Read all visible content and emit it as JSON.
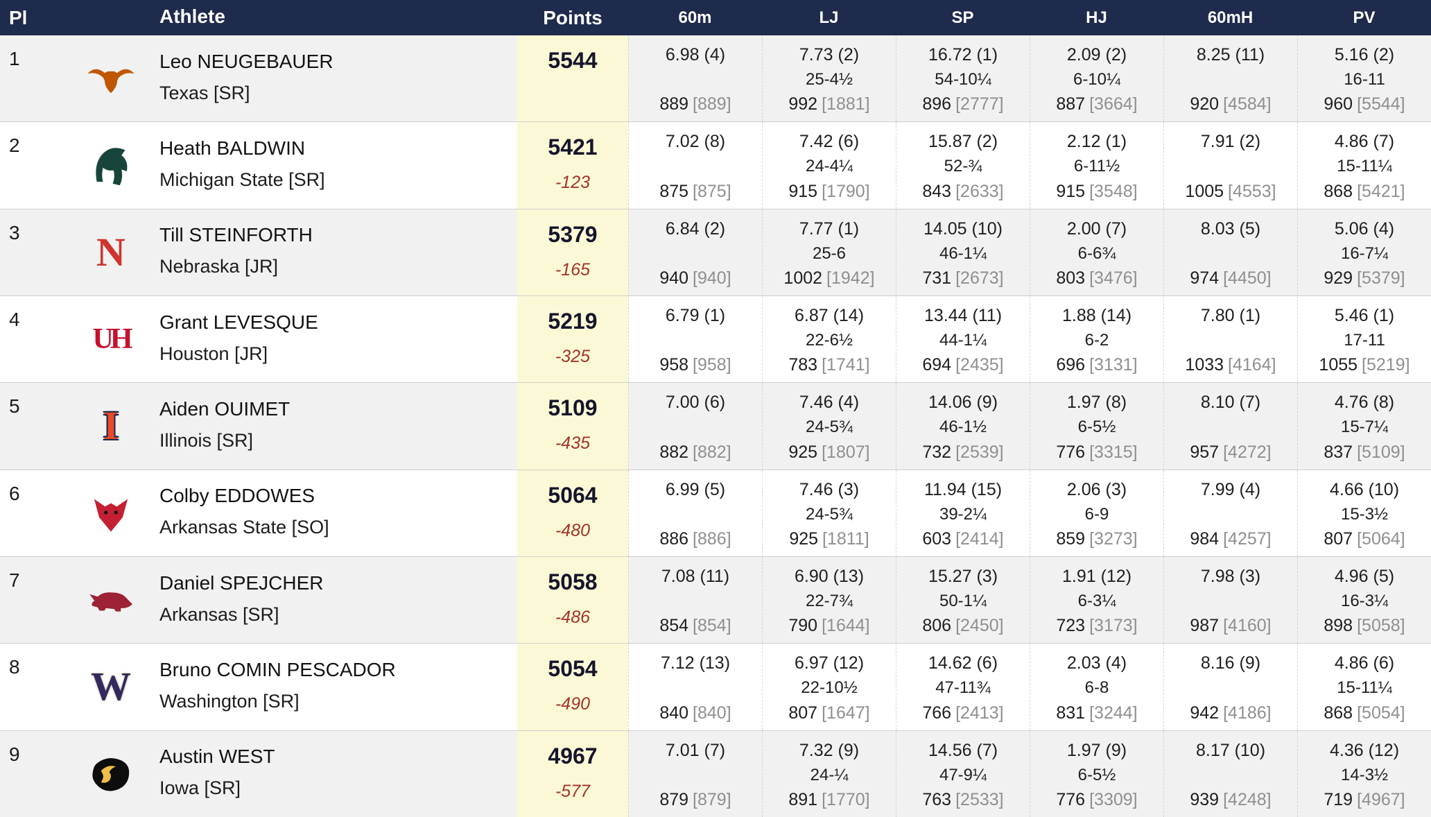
{
  "header": {
    "columns": [
      {
        "key": "pl",
        "label": "Pl"
      },
      {
        "key": "athlete",
        "label": "Athlete"
      },
      {
        "key": "points",
        "label": "Points"
      },
      {
        "key": "60m",
        "label": "60m"
      },
      {
        "key": "lj",
        "label": "LJ"
      },
      {
        "key": "sp",
        "label": "SP"
      },
      {
        "key": "hj",
        "label": "HJ"
      },
      {
        "key": "60mh",
        "label": "60mH"
      },
      {
        "key": "pv",
        "label": "PV"
      }
    ]
  },
  "colors": {
    "header_bg": "#1e2b4d",
    "header_text": "#ffffff",
    "points_column_bg": "#fbf8d6",
    "alt_row_bg": "#f1f1f1",
    "deficit_red": "#a0342b",
    "cumulative_gray": "#8f8f8f",
    "row_border": "#cfcfcf"
  },
  "rows": [
    {
      "place": "1",
      "athlete": {
        "name": "Leo NEUGEBAUER",
        "team": "Texas [SR]"
      },
      "logo": {
        "name": "texas-longhorns-logo",
        "style": "longhorn",
        "color": "#bf5700",
        "color2": "#bf5700"
      },
      "points": {
        "total": "5544",
        "deficit": ""
      },
      "events": [
        {
          "mark": "6.98 (4)",
          "imperial": "",
          "points": "889",
          "cumulative": "[889]"
        },
        {
          "mark": "7.73 (2)",
          "imperial": "25-4½",
          "points": "992",
          "cumulative": "[1881]"
        },
        {
          "mark": "16.72 (1)",
          "imperial": "54-10¼",
          "points": "896",
          "cumulative": "[2777]"
        },
        {
          "mark": "2.09 (2)",
          "imperial": "6-10¼",
          "points": "887",
          "cumulative": "[3664]"
        },
        {
          "mark": "8.25 (11)",
          "imperial": "",
          "points": "920",
          "cumulative": "[4584]"
        },
        {
          "mark": "5.16 (2)",
          "imperial": "16-11",
          "points": "960",
          "cumulative": "[5544]"
        }
      ]
    },
    {
      "place": "2",
      "athlete": {
        "name": "Heath BALDWIN",
        "team": "Michigan State [SR]"
      },
      "logo": {
        "name": "michigan-state-spartans-logo",
        "style": "spartan",
        "color": "#18453b",
        "color2": "#18453b"
      },
      "points": {
        "total": "5421",
        "deficit": "-123"
      },
      "events": [
        {
          "mark": "7.02 (8)",
          "imperial": "",
          "points": "875",
          "cumulative": "[875]"
        },
        {
          "mark": "7.42 (6)",
          "imperial": "24-4¼",
          "points": "915",
          "cumulative": "[1790]"
        },
        {
          "mark": "15.87 (2)",
          "imperial": "52-¾",
          "points": "843",
          "cumulative": "[2633]"
        },
        {
          "mark": "2.12 (1)",
          "imperial": "6-11½",
          "points": "915",
          "cumulative": "[3548]"
        },
        {
          "mark": "7.91 (2)",
          "imperial": "",
          "points": "1005",
          "cumulative": "[4553]"
        },
        {
          "mark": "4.86 (7)",
          "imperial": "15-11¼",
          "points": "868",
          "cumulative": "[5421]"
        }
      ]
    },
    {
      "place": "3",
      "athlete": {
        "name": "Till STEINFORTH",
        "team": "Nebraska [JR]"
      },
      "logo": {
        "name": "nebraska-huskers-logo",
        "style": "block-n",
        "color": "#d0342c",
        "color2": "#ffffff"
      },
      "points": {
        "total": "5379",
        "deficit": "-165"
      },
      "events": [
        {
          "mark": "6.84 (2)",
          "imperial": "",
          "points": "940",
          "cumulative": "[940]"
        },
        {
          "mark": "7.77 (1)",
          "imperial": "25-6",
          "points": "1002",
          "cumulative": "[1942]"
        },
        {
          "mark": "14.05 (10)",
          "imperial": "46-1¼",
          "points": "731",
          "cumulative": "[2673]"
        },
        {
          "mark": "2.00 (7)",
          "imperial": "6-6¾",
          "points": "803",
          "cumulative": "[3476]"
        },
        {
          "mark": "8.03 (5)",
          "imperial": "",
          "points": "974",
          "cumulative": "[4450]"
        },
        {
          "mark": "5.06 (4)",
          "imperial": "16-7¼",
          "points": "929",
          "cumulative": "[5379]"
        }
      ]
    },
    {
      "place": "4",
      "athlete": {
        "name": "Grant LEVESQUE",
        "team": "Houston [JR]"
      },
      "logo": {
        "name": "houston-cougars-logo",
        "style": "uh",
        "color": "#c8102e",
        "color2": "#ffffff"
      },
      "points": {
        "total": "5219",
        "deficit": "-325"
      },
      "events": [
        {
          "mark": "6.79 (1)",
          "imperial": "",
          "points": "958",
          "cumulative": "[958]"
        },
        {
          "mark": "6.87 (14)",
          "imperial": "22-6½",
          "points": "783",
          "cumulative": "[1741]"
        },
        {
          "mark": "13.44 (11)",
          "imperial": "44-1¼",
          "points": "694",
          "cumulative": "[2435]"
        },
        {
          "mark": "1.88 (14)",
          "imperial": "6-2",
          "points": "696",
          "cumulative": "[3131]"
        },
        {
          "mark": "7.80 (1)",
          "imperial": "",
          "points": "1033",
          "cumulative": "[4164]"
        },
        {
          "mark": "5.46 (1)",
          "imperial": "17-11",
          "points": "1055",
          "cumulative": "[5219]"
        }
      ]
    },
    {
      "place": "5",
      "athlete": {
        "name": "Aiden OUIMET",
        "team": "Illinois [SR]"
      },
      "logo": {
        "name": "illinois-fighting-illini-logo",
        "style": "block-i",
        "color": "#e84a27",
        "color2": "#13294b"
      },
      "points": {
        "total": "5109",
        "deficit": "-435"
      },
      "events": [
        {
          "mark": "7.00 (6)",
          "imperial": "",
          "points": "882",
          "cumulative": "[882]"
        },
        {
          "mark": "7.46 (4)",
          "imperial": "24-5¾",
          "points": "925",
          "cumulative": "[1807]"
        },
        {
          "mark": "14.06 (9)",
          "imperial": "46-1½",
          "points": "732",
          "cumulative": "[2539]"
        },
        {
          "mark": "1.97 (8)",
          "imperial": "6-5½",
          "points": "776",
          "cumulative": "[3315]"
        },
        {
          "mark": "8.10 (7)",
          "imperial": "",
          "points": "957",
          "cumulative": "[4272]"
        },
        {
          "mark": "4.76 (8)",
          "imperial": "15-7¼",
          "points": "837",
          "cumulative": "[5109]"
        }
      ]
    },
    {
      "place": "6",
      "athlete": {
        "name": "Colby EDDOWES",
        "team": "Arkansas State [SO]"
      },
      "logo": {
        "name": "arkansas-state-red-wolves-logo",
        "style": "wolf",
        "color": "#c42032",
        "color2": "#111111"
      },
      "points": {
        "total": "5064",
        "deficit": "-480"
      },
      "events": [
        {
          "mark": "6.99 (5)",
          "imperial": "",
          "points": "886",
          "cumulative": "[886]"
        },
        {
          "mark": "7.46 (3)",
          "imperial": "24-5¾",
          "points": "925",
          "cumulative": "[1811]"
        },
        {
          "mark": "11.94 (15)",
          "imperial": "39-2¼",
          "points": "603",
          "cumulative": "[2414]"
        },
        {
          "mark": "2.06 (3)",
          "imperial": "6-9",
          "points": "859",
          "cumulative": "[3273]"
        },
        {
          "mark": "7.99 (4)",
          "imperial": "",
          "points": "984",
          "cumulative": "[4257]"
        },
        {
          "mark": "4.66 (10)",
          "imperial": "15-3½",
          "points": "807",
          "cumulative": "[5064]"
        }
      ]
    },
    {
      "place": "7",
      "athlete": {
        "name": "Daniel SPEJCHER",
        "team": "Arkansas [SR]"
      },
      "logo": {
        "name": "arkansas-razorbacks-logo",
        "style": "razorback",
        "color": "#9d2235",
        "color2": "#9d2235"
      },
      "points": {
        "total": "5058",
        "deficit": "-486"
      },
      "events": [
        {
          "mark": "7.08 (11)",
          "imperial": "",
          "points": "854",
          "cumulative": "[854]"
        },
        {
          "mark": "6.90 (13)",
          "imperial": "22-7¾",
          "points": "790",
          "cumulative": "[1644]"
        },
        {
          "mark": "15.27 (3)",
          "imperial": "50-1¼",
          "points": "806",
          "cumulative": "[2450]"
        },
        {
          "mark": "1.91 (12)",
          "imperial": "6-3¼",
          "points": "723",
          "cumulative": "[3173]"
        },
        {
          "mark": "7.98 (3)",
          "imperial": "",
          "points": "987",
          "cumulative": "[4160]"
        },
        {
          "mark": "4.96 (5)",
          "imperial": "16-3¼",
          "points": "898",
          "cumulative": "[5058]"
        }
      ]
    },
    {
      "place": "8",
      "athlete": {
        "name": "Bruno COMIN PESCADOR",
        "team": "Washington [SR]"
      },
      "logo": {
        "name": "washington-huskies-logo",
        "style": "block-w",
        "color": "#33295e",
        "color2": "#b7a57a"
      },
      "points": {
        "total": "5054",
        "deficit": "-490"
      },
      "events": [
        {
          "mark": "7.12 (13)",
          "imperial": "",
          "points": "840",
          "cumulative": "[840]"
        },
        {
          "mark": "6.97 (12)",
          "imperial": "22-10½",
          "points": "807",
          "cumulative": "[1647]"
        },
        {
          "mark": "14.62 (6)",
          "imperial": "47-11¾",
          "points": "766",
          "cumulative": "[2413]"
        },
        {
          "mark": "2.03 (4)",
          "imperial": "6-8",
          "points": "831",
          "cumulative": "[3244]"
        },
        {
          "mark": "8.16 (9)",
          "imperial": "",
          "points": "942",
          "cumulative": "[4186]"
        },
        {
          "mark": "4.86 (6)",
          "imperial": "15-11¼",
          "points": "868",
          "cumulative": "[5054]"
        }
      ]
    },
    {
      "place": "9",
      "athlete": {
        "name": "Austin WEST",
        "team": "Iowa [SR]"
      },
      "logo": {
        "name": "iowa-hawkeyes-logo",
        "style": "hawkeye",
        "color": "#0d0d0d",
        "color2": "#f1be48"
      },
      "points": {
        "total": "4967",
        "deficit": "-577"
      },
      "events": [
        {
          "mark": "7.01 (7)",
          "imperial": "",
          "points": "879",
          "cumulative": "[879]"
        },
        {
          "mark": "7.32 (9)",
          "imperial": "24-¼",
          "points": "891",
          "cumulative": "[1770]"
        },
        {
          "mark": "14.56 (7)",
          "imperial": "47-9¼",
          "points": "763",
          "cumulative": "[2533]"
        },
        {
          "mark": "1.97 (9)",
          "imperial": "6-5½",
          "points": "776",
          "cumulative": "[3309]"
        },
        {
          "mark": "8.17 (10)",
          "imperial": "",
          "points": "939",
          "cumulative": "[4248]"
        },
        {
          "mark": "4.36 (12)",
          "imperial": "14-3½",
          "points": "719",
          "cumulative": "[4967]"
        }
      ]
    }
  ]
}
